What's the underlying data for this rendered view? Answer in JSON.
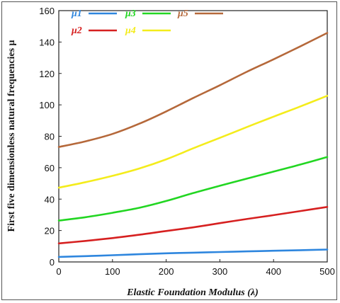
{
  "chart_data": {
    "type": "line",
    "xlabel": "Elastic Foundation Modulus (λ)",
    "ylabel": "First five dimensionless natural frequencies μ",
    "xlim": [
      0,
      500
    ],
    "ylim": [
      0,
      160
    ],
    "x_ticks": [
      "0",
      "100",
      "200",
      "300",
      "400",
      "500"
    ],
    "y_ticks": [
      "0",
      "20",
      "40",
      "60",
      "80",
      "100",
      "120",
      "140",
      "160"
    ],
    "grid": false,
    "legend_position": "top-left",
    "x": [
      0,
      50,
      100,
      150,
      200,
      250,
      300,
      350,
      400,
      450,
      500
    ],
    "series": [
      {
        "name": "μ1",
        "color": "#2e86de",
        "values": [
          3.2,
          3.7,
          4.3,
          4.9,
          5.5,
          5.9,
          6.3,
          6.7,
          7.1,
          7.5,
          7.9
        ]
      },
      {
        "name": "μ2",
        "color": "#d62020",
        "values": [
          11.8,
          13.4,
          15.2,
          17.3,
          19.7,
          22.0,
          24.7,
          27.3,
          29.8,
          32.4,
          35.0
        ]
      },
      {
        "name": "μ3",
        "color": "#22d622",
        "values": [
          26.3,
          28.5,
          31.3,
          34.5,
          38.8,
          43.8,
          48.5,
          53.0,
          57.5,
          62.0,
          66.8
        ]
      },
      {
        "name": "μ4",
        "color": "#f4ec1c",
        "values": [
          47.3,
          50.8,
          54.8,
          59.5,
          65.3,
          72.3,
          79.0,
          85.8,
          92.5,
          99.0,
          105.8
        ]
      },
      {
        "name": "μ5",
        "color": "#b5683a",
        "values": [
          73.2,
          76.8,
          81.5,
          88.0,
          95.8,
          104.3,
          112.5,
          121.0,
          129.0,
          137.3,
          145.8
        ]
      }
    ]
  }
}
